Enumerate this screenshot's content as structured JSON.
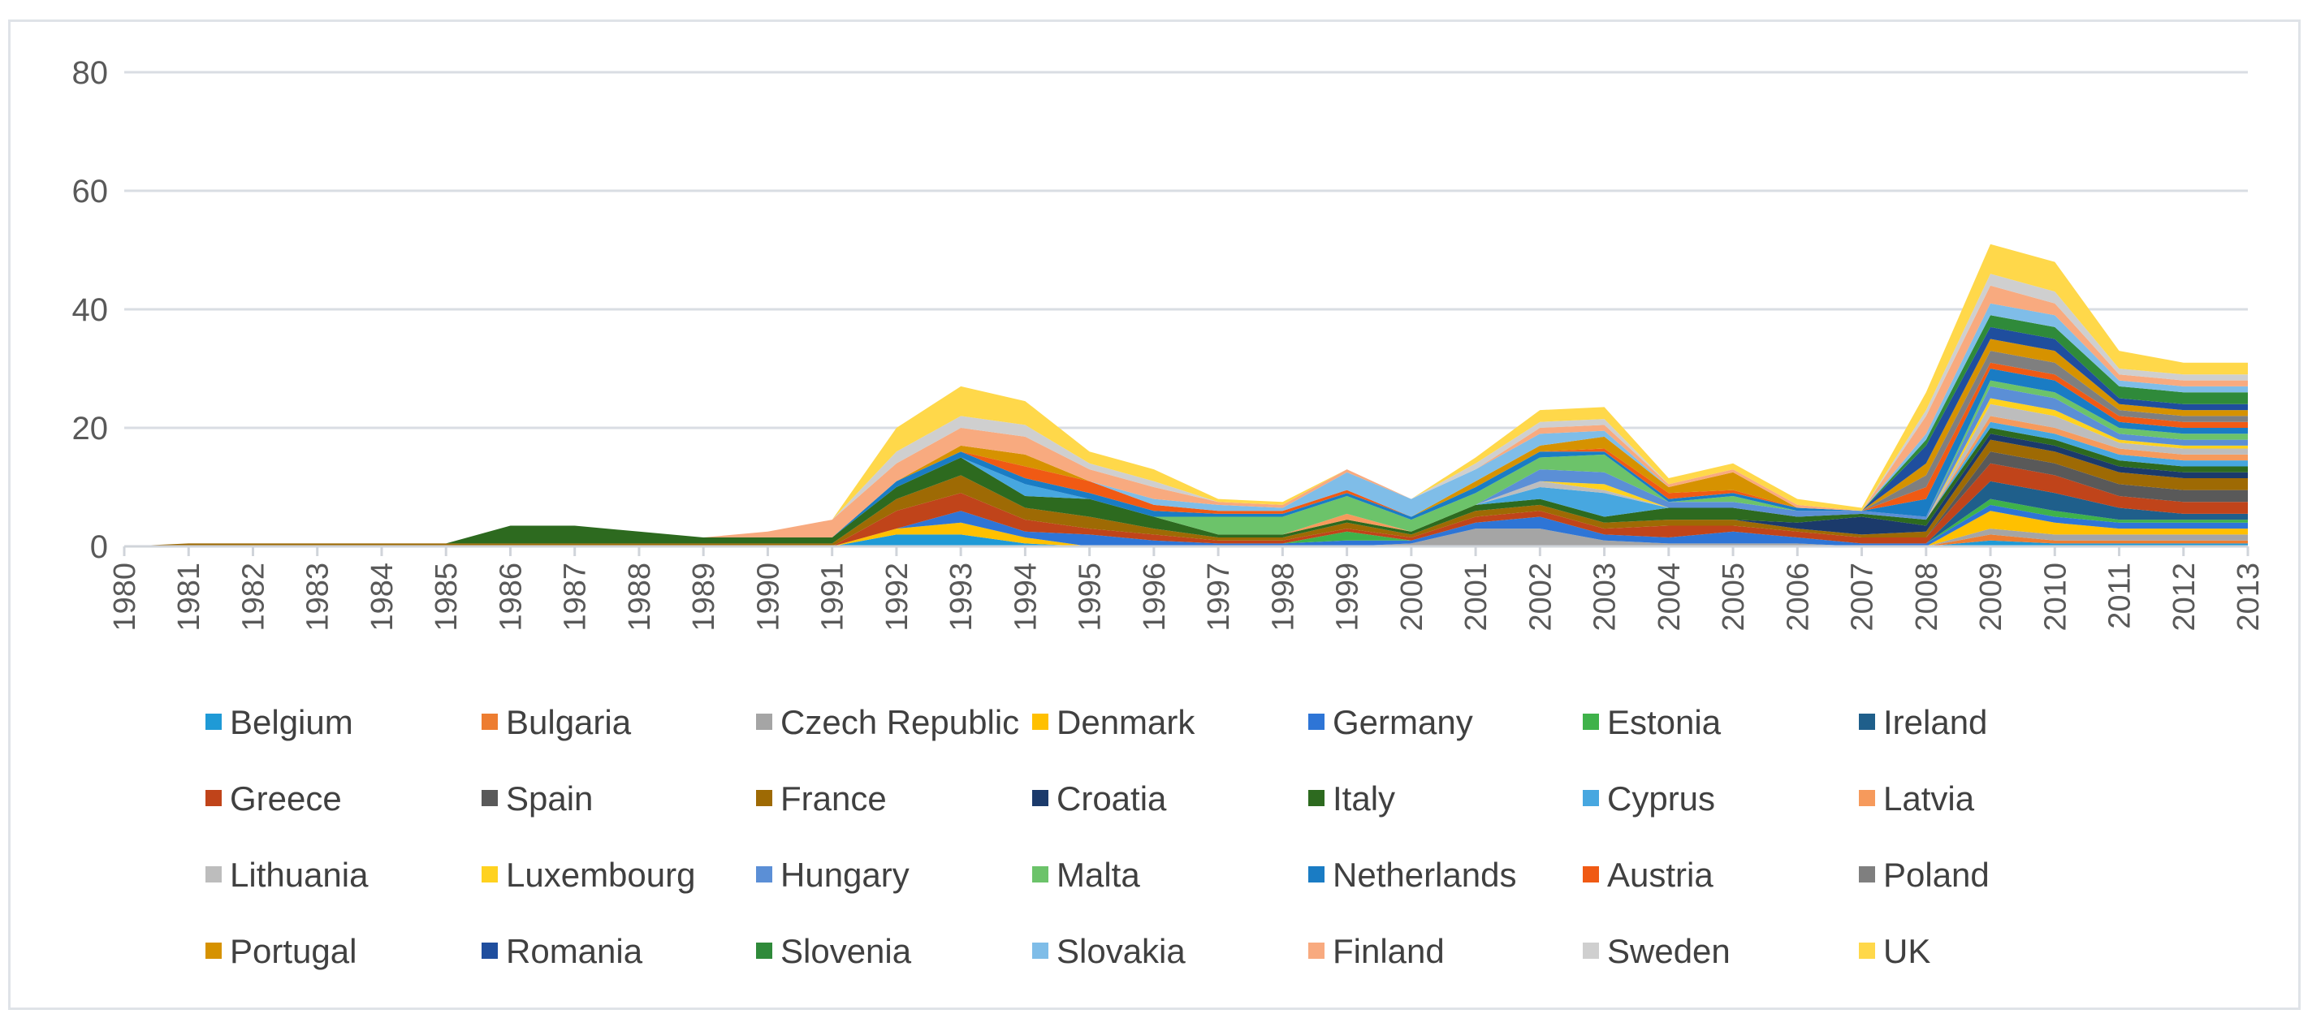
{
  "chart_data": {
    "type": "area",
    "stacked": true,
    "title": "",
    "xlabel": "",
    "ylabel": "",
    "ylim": [
      0,
      80
    ],
    "yticks": [
      "0",
      "20",
      "40",
      "60",
      "80"
    ],
    "grid": true,
    "legend_position": "bottom",
    "categories": [
      "1980",
      "1981",
      "1982",
      "1983",
      "1984",
      "1985",
      "1986",
      "1987",
      "1988",
      "1989",
      "1990",
      "1991",
      "1992",
      "1993",
      "1994",
      "1995",
      "1996",
      "1997",
      "1998",
      "1999",
      "2000",
      "2001",
      "2002",
      "2003",
      "2004",
      "2005",
      "2006",
      "2007",
      "2008",
      "2009",
      "2010",
      "2011",
      "2012",
      "2013"
    ],
    "series": [
      {
        "name": "Belgium",
        "color": "#1f9ad6",
        "values": [
          0,
          0,
          0,
          0,
          0,
          0,
          0,
          0,
          0,
          0,
          0,
          0,
          2,
          2,
          0.5,
          0,
          0,
          0,
          0,
          0,
          0,
          0,
          0,
          0,
          0,
          0,
          0,
          0,
          0,
          1,
          0.5,
          0.5,
          0.5,
          0.5
        ]
      },
      {
        "name": "Bulgaria",
        "color": "#ed7d31",
        "values": [
          0,
          0,
          0,
          0,
          0,
          0,
          0,
          0,
          0,
          0,
          0,
          0,
          0,
          0,
          0,
          0,
          0,
          0,
          0,
          0,
          0,
          0,
          0,
          0,
          0,
          0,
          0,
          0,
          0,
          1,
          0.5,
          0.5,
          0.5,
          0.5
        ]
      },
      {
        "name": "Czech Republic",
        "color": "#a5a5a5",
        "values": [
          0,
          0,
          0,
          0,
          0,
          0,
          0,
          0,
          0,
          0,
          0,
          0,
          0,
          0,
          0,
          0,
          0,
          0,
          0,
          0,
          0.5,
          3,
          3,
          1,
          0.5,
          0.5,
          0.5,
          0,
          0,
          1,
          1,
          1,
          1,
          1
        ]
      },
      {
        "name": "Denmark",
        "color": "#ffc000",
        "values": [
          0,
          0,
          0,
          0,
          0,
          0,
          0,
          0,
          0,
          0,
          0,
          0,
          1,
          2,
          1,
          0,
          0,
          0,
          0,
          0,
          0,
          0,
          0,
          0,
          0,
          0,
          0,
          0,
          0,
          3,
          2,
          1,
          1,
          1
        ]
      },
      {
        "name": "Germany",
        "color": "#2e75d6",
        "values": [
          0,
          0,
          0,
          0,
          0,
          0,
          0,
          0,
          0,
          0,
          0,
          0,
          0,
          2,
          1,
          2,
          1,
          0.5,
          0.5,
          1,
          0.5,
          1,
          2,
          1,
          1,
          2,
          1,
          0.5,
          0.5,
          1,
          1,
          1,
          1,
          1
        ]
      },
      {
        "name": "Estonia",
        "color": "#3fb24a",
        "values": [
          0,
          0,
          0,
          0,
          0,
          0,
          0,
          0,
          0,
          0,
          0,
          0,
          0,
          0,
          0,
          0,
          0,
          0,
          0,
          1.5,
          0,
          0,
          0,
          0,
          0,
          0,
          0,
          0,
          0,
          1,
          1,
          0.5,
          0.5,
          0.5
        ]
      },
      {
        "name": "Ireland",
        "color": "#1f5f8b",
        "values": [
          0,
          0,
          0,
          0,
          0,
          0,
          0,
          0,
          0,
          0,
          0,
          0,
          0,
          0,
          0,
          0,
          0,
          0,
          0,
          0,
          0,
          0,
          0,
          0,
          0,
          0,
          0,
          0,
          0,
          3,
          3,
          2,
          1,
          1
        ]
      },
      {
        "name": "Greece",
        "color": "#c0441a",
        "values": [
          0,
          0,
          0,
          0,
          0,
          0,
          0,
          0,
          0,
          0,
          0,
          0,
          3,
          3,
          2,
          1,
          1,
          0.5,
          0.5,
          0.5,
          0.5,
          1,
          1,
          1,
          2,
          1,
          1,
          1,
          1,
          3,
          3,
          2,
          2,
          2
        ]
      },
      {
        "name": "Spain",
        "color": "#595959",
        "values": [
          0,
          0,
          0,
          0,
          0,
          0,
          0,
          0,
          0,
          0,
          0,
          0,
          0,
          0,
          0,
          0,
          0,
          0,
          0,
          0,
          0,
          0,
          0,
          0,
          0,
          0,
          0,
          0,
          0,
          2,
          2,
          2,
          2,
          2
        ]
      },
      {
        "name": "France",
        "color": "#9e6a04",
        "values": [
          0,
          0.5,
          0.5,
          0.5,
          0.5,
          0.5,
          0.5,
          0.5,
          0.5,
          0.5,
          0.5,
          0.5,
          2,
          3,
          2,
          2,
          1,
          0.5,
          0.5,
          1,
          0.5,
          1,
          1,
          1,
          1,
          1,
          0.5,
          0.5,
          1,
          2,
          2,
          2,
          2,
          2
        ]
      },
      {
        "name": "Croatia",
        "color": "#1b3a6b",
        "values": [
          0,
          0,
          0,
          0,
          0,
          0,
          0,
          0,
          0,
          0,
          0,
          0,
          0,
          0,
          0,
          0,
          0,
          0,
          0,
          0,
          0,
          0,
          0,
          0,
          0,
          0,
          1,
          3,
          1,
          1,
          1,
          1,
          1,
          1
        ]
      },
      {
        "name": "Italy",
        "color": "#2d6a1f",
        "values": [
          0,
          0,
          0,
          0,
          0,
          0,
          3,
          3,
          2,
          1,
          1,
          1,
          2,
          3,
          2,
          3,
          2,
          0.5,
          0.5,
          0.5,
          0.5,
          1,
          1,
          1,
          2,
          2,
          1,
          0.5,
          1,
          1,
          1,
          1,
          1,
          1
        ]
      },
      {
        "name": "Cyprus",
        "color": "#47a7e0",
        "values": [
          0,
          0,
          0,
          0,
          0,
          0,
          0,
          0,
          0,
          0,
          0,
          0,
          0,
          0,
          2,
          0,
          0,
          0,
          0,
          0,
          0,
          0,
          2,
          4,
          0,
          0,
          0,
          0,
          0,
          1,
          1,
          1,
          1,
          1
        ]
      },
      {
        "name": "Latvia",
        "color": "#f69a5c",
        "values": [
          0,
          0,
          0,
          0,
          0,
          0,
          0,
          0,
          0,
          0,
          0,
          0,
          0,
          0,
          0,
          0,
          0,
          0,
          0,
          1,
          0,
          0,
          0,
          0,
          0,
          0,
          0,
          0,
          0,
          1,
          1,
          1,
          1,
          1
        ]
      },
      {
        "name": "Lithuania",
        "color": "#bdbdbd",
        "values": [
          0,
          0,
          0,
          0,
          0,
          0,
          0,
          0,
          0,
          0,
          0,
          0,
          0,
          0,
          0,
          0,
          0,
          0,
          0,
          0,
          0,
          0,
          1,
          0.5,
          0,
          0,
          0,
          0,
          0,
          2,
          2,
          1,
          1,
          1
        ]
      },
      {
        "name": "Luxembourg",
        "color": "#ffd21f",
        "values": [
          0,
          0,
          0,
          0,
          0,
          0,
          0,
          0,
          0,
          0,
          0,
          0,
          0,
          0,
          0,
          0,
          0,
          0,
          0,
          0,
          0,
          0,
          0,
          1,
          0,
          0,
          0,
          0,
          0,
          1,
          1,
          0.5,
          0.5,
          0.5
        ]
      },
      {
        "name": "Hungary",
        "color": "#5b8fd6",
        "values": [
          0,
          0,
          0,
          0,
          0,
          0,
          0,
          0,
          0,
          0,
          0,
          0,
          0,
          0,
          0,
          0,
          0,
          0,
          0,
          0,
          0,
          0,
          2,
          2,
          1,
          1,
          1,
          0.5,
          0.5,
          2,
          2,
          1,
          1,
          1
        ]
      },
      {
        "name": "Malta",
        "color": "#6cc36a",
        "values": [
          0,
          0,
          0,
          0,
          0,
          0,
          0,
          0,
          0,
          0,
          0,
          0,
          0,
          0,
          0,
          0,
          0,
          3,
          3,
          3,
          2,
          2,
          2,
          3,
          0,
          1,
          0,
          0,
          0,
          1,
          1,
          1,
          1,
          1
        ]
      },
      {
        "name": "Netherlands",
        "color": "#1a7cc4",
        "values": [
          0,
          0,
          0,
          0,
          0,
          0,
          0,
          0,
          0,
          0,
          0,
          0,
          1,
          1,
          1,
          1,
          1,
          0.5,
          0.5,
          0.5,
          0.5,
          1,
          1,
          0.5,
          0.5,
          0.5,
          0.5,
          0,
          3,
          2,
          2,
          1,
          1,
          1
        ]
      },
      {
        "name": "Austria",
        "color": "#f05a14",
        "values": [
          0,
          0,
          0,
          0,
          0,
          0,
          0,
          0,
          0,
          0,
          0,
          0,
          0,
          0,
          2,
          2,
          1,
          0.5,
          0.5,
          0.5,
          0,
          0,
          0,
          0.5,
          1,
          0.5,
          0,
          0,
          2,
          1,
          1,
          1,
          1,
          1
        ]
      },
      {
        "name": "Poland",
        "color": "#7f7f7f",
        "values": [
          0,
          0,
          0,
          0,
          0,
          0,
          0,
          0,
          0,
          0,
          0,
          0,
          0,
          0,
          0,
          0,
          0,
          0,
          0,
          0,
          0,
          0,
          0,
          0,
          0,
          0,
          0,
          0,
          2,
          2,
          2,
          1,
          1,
          1
        ]
      },
      {
        "name": "Portugal",
        "color": "#d69200",
        "values": [
          0,
          0,
          0,
          0,
          0,
          0,
          0,
          0,
          0,
          0,
          0,
          0,
          0,
          1,
          2,
          0,
          0,
          0,
          0,
          0,
          0,
          1,
          1,
          2,
          1,
          3,
          0,
          0,
          2,
          2,
          2,
          1,
          1,
          1
        ]
      },
      {
        "name": "Romania",
        "color": "#1f4e9e",
        "values": [
          0,
          0,
          0,
          0,
          0,
          0,
          0,
          0,
          0,
          0,
          0,
          0,
          0,
          0,
          0,
          0,
          0,
          0,
          0,
          0,
          0,
          0,
          0,
          0,
          0,
          0,
          0,
          0,
          3,
          2,
          2,
          1,
          1,
          1
        ]
      },
      {
        "name": "Slovenia",
        "color": "#2f8a3a",
        "values": [
          0,
          0,
          0,
          0,
          0,
          0,
          0,
          0,
          0,
          0,
          0,
          0,
          0,
          0,
          0,
          0,
          0,
          0,
          0,
          0,
          0,
          0,
          0,
          0,
          0,
          0,
          0,
          0,
          1,
          2,
          2,
          2,
          2,
          2
        ]
      },
      {
        "name": "Slovakia",
        "color": "#7fbde8",
        "values": [
          0,
          0,
          0,
          0,
          0,
          0,
          0,
          0,
          0,
          0,
          0,
          0,
          0,
          0,
          0,
          0,
          1,
          1,
          0.5,
          3,
          3,
          2,
          2,
          1,
          0,
          0,
          0,
          0,
          1,
          2,
          2,
          1,
          1,
          1
        ]
      },
      {
        "name": "Finland",
        "color": "#f8aa7f",
        "values": [
          0,
          0,
          0,
          0,
          0,
          0,
          0,
          0,
          0,
          0,
          1,
          3,
          3,
          3,
          3,
          2,
          2,
          0.5,
          0.5,
          0.5,
          0,
          0,
          1,
          1,
          0.5,
          0.5,
          0.5,
          0,
          3,
          3,
          2,
          1,
          1,
          1
        ]
      },
      {
        "name": "Sweden",
        "color": "#cfcfcf",
        "values": [
          0,
          0,
          0,
          0,
          0,
          0,
          0,
          0,
          0,
          0,
          0,
          0,
          2,
          2,
          2,
          1,
          1,
          0,
          0,
          0,
          0,
          1,
          1,
          1,
          0,
          0,
          0,
          0,
          1,
          2,
          2,
          1,
          1,
          1
        ]
      },
      {
        "name": "UK",
        "color": "#ffd84a",
        "values": [
          0,
          0,
          0,
          0,
          0,
          0,
          0,
          0,
          0,
          0,
          0,
          0,
          4,
          5,
          4,
          2,
          2,
          0.5,
          0.5,
          0,
          0,
          1,
          2,
          2,
          1,
          1,
          1,
          0.5,
          3,
          5,
          5,
          3,
          2,
          2
        ]
      }
    ]
  }
}
